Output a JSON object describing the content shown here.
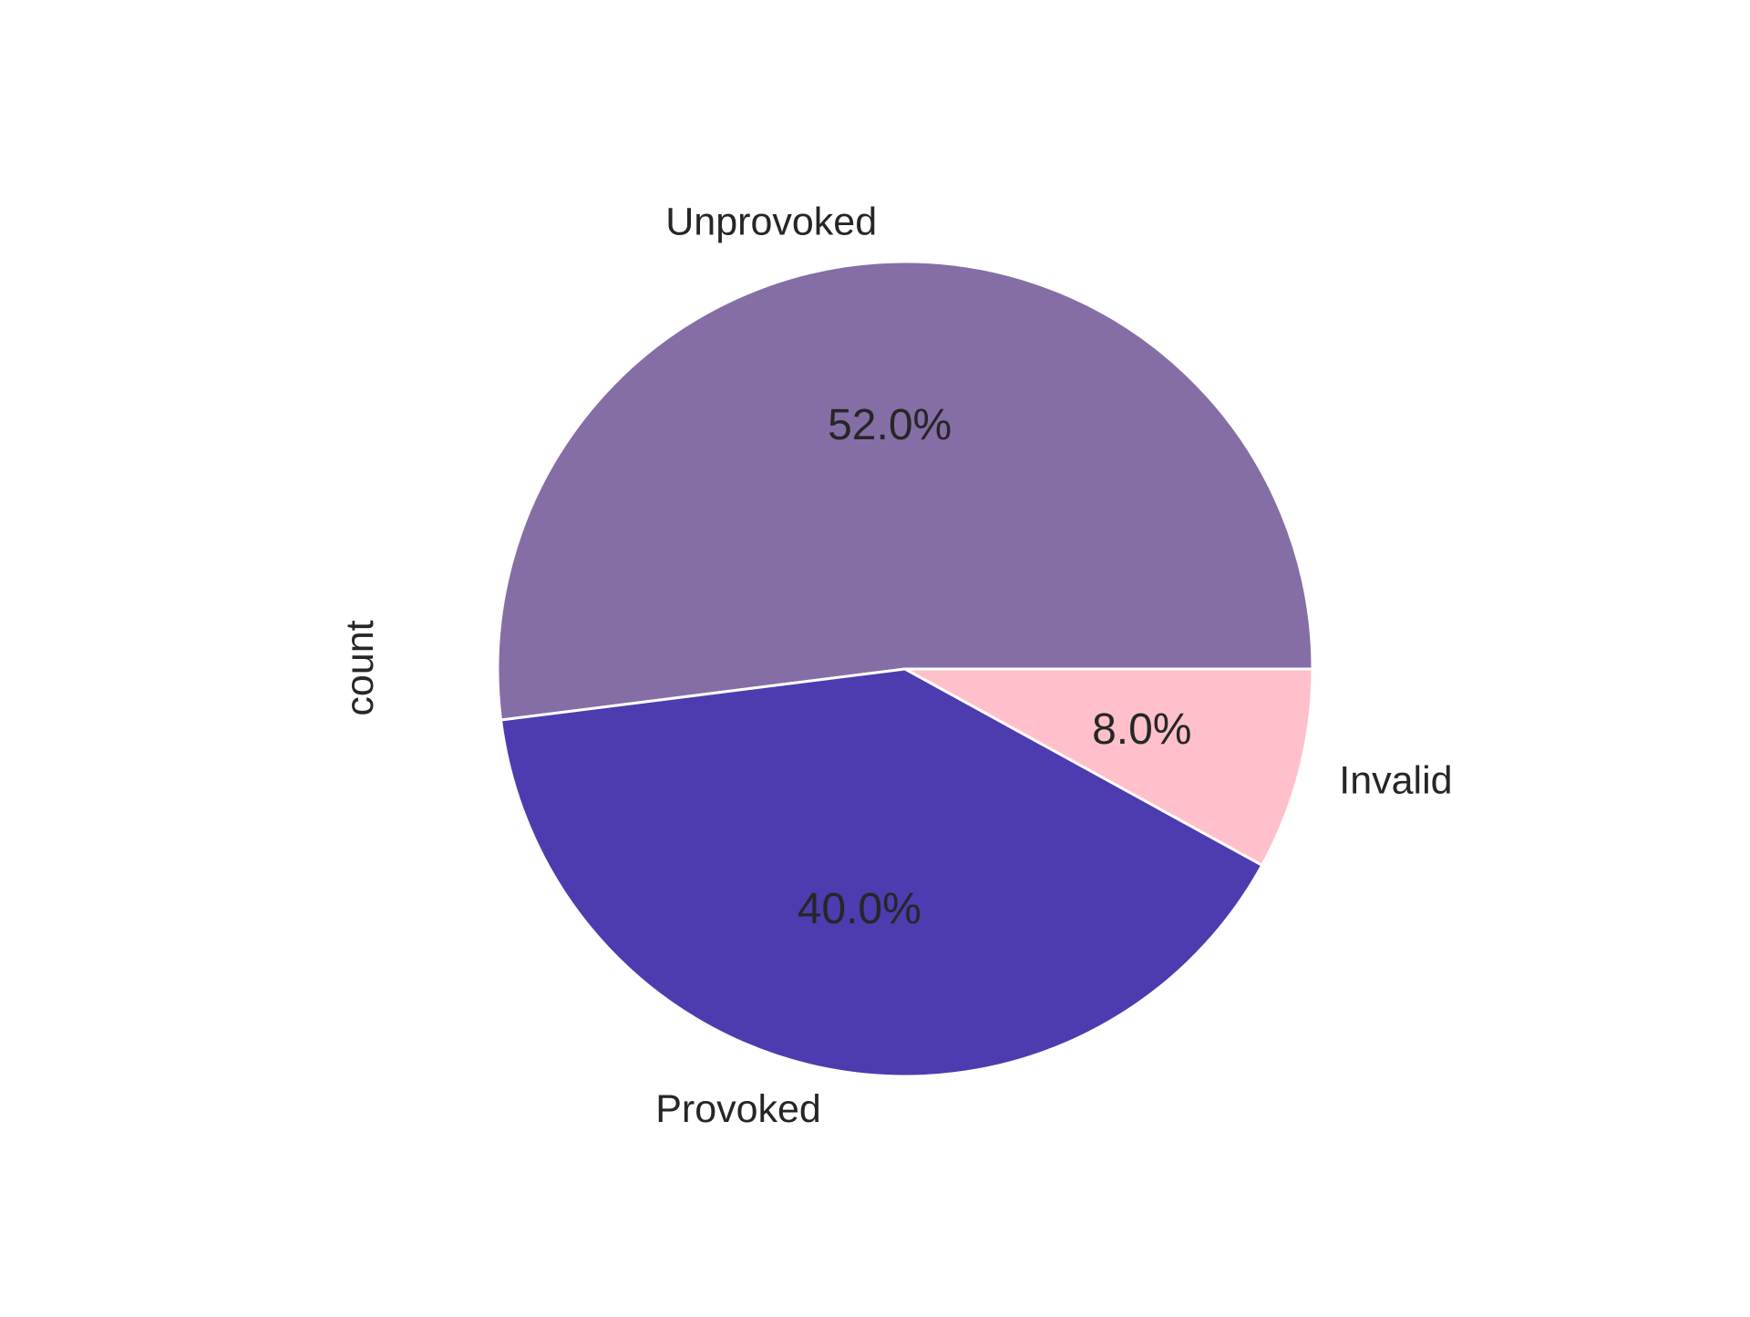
{
  "chart_data": {
    "type": "pie",
    "categories": [
      "Unprovoked",
      "Provoked",
      "Invalid"
    ],
    "values": [
      52.0,
      40.0,
      8.0
    ],
    "percent_labels": [
      "52.0%",
      "40.0%",
      "8.0%"
    ],
    "colors": [
      "#856ea6",
      "#4c3caf",
      "#ffc0cb"
    ],
    "ylabel": "count",
    "start_angle_deg": 0,
    "direction": "counterclockwise",
    "edge_color": "#ffffff"
  }
}
